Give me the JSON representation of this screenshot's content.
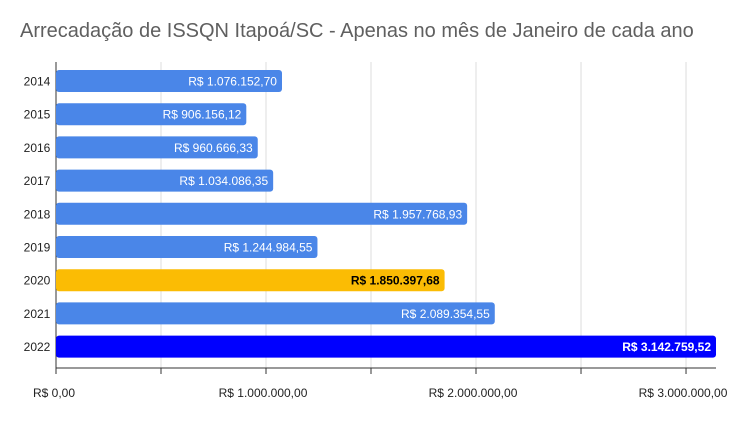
{
  "chart_data": {
    "type": "bar",
    "orientation": "horizontal",
    "title": "Arrecadação de ISSQN Itapoá/SC - Apenas no mês de Janeiro de cada ano",
    "categories": [
      "2014",
      "2015",
      "2016",
      "2017",
      "2018",
      "2019",
      "2020",
      "2021",
      "2022"
    ],
    "values": [
      1076152.7,
      906156.12,
      960666.33,
      1034086.35,
      1957768.93,
      1244984.55,
      1850397.68,
      2089354.55,
      3142759.52
    ],
    "value_labels": [
      "R$ 1.076.152,70",
      "R$ 906.156,12",
      "R$ 960.666,33",
      "R$ 1.034.086,35",
      "R$ 1.957.768,93",
      "R$ 1.244.984,55",
      "R$ 1.850.397,68",
      "R$ 2.089.354,55",
      "R$ 3.142.759,52"
    ],
    "bar_colors": [
      "#4a86e8",
      "#4a86e8",
      "#4a86e8",
      "#4a86e8",
      "#4a86e8",
      "#4a86e8",
      "#fbbc04",
      "#4a86e8",
      "#0000ff"
    ],
    "label_colors": [
      "#ffffff",
      "#ffffff",
      "#ffffff",
      "#ffffff",
      "#ffffff",
      "#ffffff",
      "#000000",
      "#ffffff",
      "#ffffff"
    ],
    "label_bold": [
      false,
      false,
      false,
      false,
      false,
      false,
      true,
      false,
      true
    ],
    "xlim": [
      0,
      3142759.52
    ],
    "x_ticks": [
      0,
      1000000,
      2000000,
      3000000
    ],
    "x_tick_labels": [
      "R$ 0,00",
      "R$ 1.000.000,00",
      "R$ 2.000.000,00",
      "R$ 3.000.000,00"
    ],
    "grid": true
  }
}
